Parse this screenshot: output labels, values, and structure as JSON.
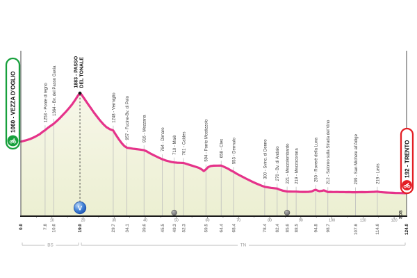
{
  "colors": {
    "pink": "#e5338a",
    "fill_top": "#f7f7e9",
    "fill_bottom": "#ecefd2",
    "axis": "#1a1a1a",
    "side_border": "#4a4a4a",
    "gridline": "#bdbdbd",
    "label_text": "#3c3c3c",
    "km_muted": "#868686",
    "km_strong": "#111111",
    "tick_text": "#777777",
    "region_text": "#9a9a9a",
    "region_line": "#bcbcbc",
    "start_green": "#17a03c",
    "finish_red": "#e31e24",
    "valico_blue_dark": "#1d4fa8",
    "valico_blue_light": "#bcd9f7",
    "feed_gray": "#5a5a5a"
  },
  "start_badge": {
    "label": "1060 - VEZZA D'OGLIO"
  },
  "finish_badge": {
    "label": "192 - TRENTO"
  },
  "credit": "SDS",
  "chart_data": {
    "type": "area",
    "title": "Stage altimetry profile Vezza d'Oglio - Trento",
    "x_unit": "km",
    "y_unit": "m",
    "xlim": [
      0,
      124
    ],
    "ylim": [
      -194,
      2590
    ],
    "grid": "vertical-waypoint-lines",
    "legend": "none",
    "summit_label_lines": [
      "1883 - PASSO",
      "DEL TONALE"
    ],
    "valico_marker": {
      "symbol": "V",
      "km": 19
    },
    "feed_zone_kms": [
      49.3,
      85.6
    ],
    "axis_ticks": [
      10,
      20,
      30,
      40,
      50,
      60,
      70,
      80,
      90,
      100,
      110,
      120
    ],
    "regions": [
      {
        "label": "BS",
        "from_km": 0,
        "to_km": 19
      },
      {
        "label": "TN",
        "from_km": 19,
        "to_km": 124
      }
    ],
    "waypoints": [
      {
        "km": 0.0,
        "km_label": "0.0",
        "elev": 1060,
        "name": "VEZZA D'OGLIO",
        "label": "1060 - VEZZA D'OGLIO",
        "style": "start"
      },
      {
        "km": 7.8,
        "km_label": "7.8",
        "elev": 1253,
        "name": "Ponte di legno",
        "label": "1253 - Ponte di legno",
        "style": "normal"
      },
      {
        "km": 10.6,
        "km_label": "10.6",
        "elev": 1364,
        "name": "Bv. del Passo Gavia",
        "label": "1364 - Bv. del Passo Gavia",
        "style": "normal"
      },
      {
        "km": 19.0,
        "km_label": "19.0",
        "elev": 1883,
        "name": "PASSO DEL TONALE",
        "label": "1883 - PASSO DEL TONALE",
        "style": "summit"
      },
      {
        "km": 29.7,
        "km_label": "29.7",
        "elev": 1248,
        "name": "Vermiglio",
        "label": "1248 - Vermiglio",
        "style": "normal"
      },
      {
        "km": 34.1,
        "km_label": "34.1",
        "elev": 957,
        "name": "Fucine-Bv. di Peio",
        "label": "957 - Fucine-Bv. di Peio",
        "style": "normal"
      },
      {
        "km": 39.6,
        "km_label": "39.6",
        "elev": 916,
        "name": "Mezzana",
        "label": "916 - Mezzana",
        "style": "normal"
      },
      {
        "km": 45.5,
        "km_label": "45.5",
        "elev": 764,
        "name": "Dimaro",
        "label": "764 - Dimaro",
        "style": "normal"
      },
      {
        "km": 49.3,
        "km_label": "49.3",
        "elev": 710,
        "name": "Malè",
        "label": "710 - Malè",
        "style": "normal",
        "feed": true
      },
      {
        "km": 52.3,
        "km_label": "52.3",
        "elev": 701,
        "name": "Caldes",
        "label": "701 - Caldes",
        "style": "normal"
      },
      {
        "km": 59.5,
        "km_label": "59.5",
        "elev": 594,
        "name": "Ponte Mostizzolo",
        "label": "594 - Ponte Mostizzolo",
        "style": "normal"
      },
      {
        "km": 64.4,
        "km_label": "64.4",
        "elev": 658,
        "name": "Cles",
        "label": "658 - Cles",
        "style": "normal"
      },
      {
        "km": 68.4,
        "km_label": "68.4",
        "elev": 553,
        "name": "Dermulo",
        "label": "553 - Dermulo",
        "style": "normal"
      },
      {
        "km": 78.4,
        "km_label": "78.4",
        "elev": 300,
        "name": "Svinc. di Denno",
        "label": "300 - Svinc. di Denno",
        "style": "normal"
      },
      {
        "km": 82.4,
        "km_label": "82.4",
        "elev": 270,
        "name": "Bv. di Andalo",
        "label": "270 - Bv. di Andalo",
        "style": "normal"
      },
      {
        "km": 85.6,
        "km_label": "85.6",
        "elev": 221,
        "name": "Mezzolombardo",
        "label": "221 - Mezzolombardo",
        "style": "normal",
        "feed": true
      },
      {
        "km": 88.5,
        "km_label": "88.5",
        "elev": 219,
        "name": "Mezzocorona",
        "label": "219 - Mezzocorona",
        "style": "normal"
      },
      {
        "km": 94.8,
        "km_label": "94.8",
        "elev": 250,
        "name": "Roverè della Luna",
        "label": "250 - Roverè della Luna",
        "style": "normal"
      },
      {
        "km": 98.7,
        "km_label": "98.7",
        "elev": 212,
        "name": "Salorno sulla Strada del Vino",
        "label": "212 - Salorno sulla Strada del Vino",
        "style": "normal"
      },
      {
        "km": 107.6,
        "km_label": "107.6",
        "elev": 209,
        "name": "San Michele all'Adige",
        "label": "209 - San Michele all'Adige",
        "style": "normal"
      },
      {
        "km": 114.6,
        "km_label": "114.6",
        "elev": 219,
        "name": "Lavis",
        "label": "219 - Lavis",
        "style": "normal"
      },
      {
        "km": 124.0,
        "km_label": "124.0",
        "elev": 192,
        "name": "TRENTO",
        "label": "192 - TRENTO",
        "style": "finish"
      }
    ],
    "profile": [
      [
        0,
        1060
      ],
      [
        1.5,
        1080
      ],
      [
        3,
        1105
      ],
      [
        4.5,
        1140
      ],
      [
        6,
        1185
      ],
      [
        7,
        1225
      ],
      [
        7.8,
        1253
      ],
      [
        9,
        1305
      ],
      [
        10.6,
        1364
      ],
      [
        11.5,
        1405
      ],
      [
        12.5,
        1455
      ],
      [
        13.5,
        1510
      ],
      [
        14.5,
        1565
      ],
      [
        15.5,
        1625
      ],
      [
        16.5,
        1690
      ],
      [
        17.5,
        1765
      ],
      [
        18.3,
        1830
      ],
      [
        19,
        1883
      ],
      [
        19.6,
        1845
      ],
      [
        20.5,
        1775
      ],
      [
        21.5,
        1700
      ],
      [
        22.5,
        1625
      ],
      [
        23.5,
        1550
      ],
      [
        24.5,
        1480
      ],
      [
        25.5,
        1415
      ],
      [
        26.5,
        1355
      ],
      [
        27.5,
        1305
      ],
      [
        28.6,
        1270
      ],
      [
        29.7,
        1248
      ],
      [
        30.5,
        1180
      ],
      [
        31.5,
        1100
      ],
      [
        32.5,
        1030
      ],
      [
        33.3,
        985
      ],
      [
        34.1,
        957
      ],
      [
        35,
        950
      ],
      [
        36,
        942
      ],
      [
        37,
        935
      ],
      [
        38,
        928
      ],
      [
        39.6,
        916
      ],
      [
        40.5,
        895
      ],
      [
        41.5,
        865
      ],
      [
        42.5,
        838
      ],
      [
        43.5,
        812
      ],
      [
        44.5,
        786
      ],
      [
        45.5,
        764
      ],
      [
        46.5,
        745
      ],
      [
        47.5,
        730
      ],
      [
        48.4,
        718
      ],
      [
        49.3,
        710
      ],
      [
        50.3,
        706
      ],
      [
        51.3,
        703
      ],
      [
        52.3,
        701
      ],
      [
        53.3,
        685
      ],
      [
        54.3,
        668
      ],
      [
        55.3,
        652
      ],
      [
        56.3,
        636
      ],
      [
        57.3,
        618
      ],
      [
        58.2,
        590
      ],
      [
        58.8,
        566
      ],
      [
        59.5,
        594
      ],
      [
        60.2,
        630
      ],
      [
        61,
        650
      ],
      [
        62,
        655
      ],
      [
        63.2,
        657
      ],
      [
        64.4,
        658
      ],
      [
        65.4,
        635
      ],
      [
        66.4,
        610
      ],
      [
        67.4,
        580
      ],
      [
        68.4,
        553
      ],
      [
        69.4,
        520
      ],
      [
        70.4,
        492
      ],
      [
        71.4,
        465
      ],
      [
        72.4,
        438
      ],
      [
        73.4,
        412
      ],
      [
        74.4,
        386
      ],
      [
        75.4,
        362
      ],
      [
        76.4,
        340
      ],
      [
        77.4,
        318
      ],
      [
        78.4,
        300
      ],
      [
        79.4,
        290
      ],
      [
        80.4,
        282
      ],
      [
        81.4,
        276
      ],
      [
        82.4,
        270
      ],
      [
        83.2,
        252
      ],
      [
        84.2,
        235
      ],
      [
        85.6,
        221
      ],
      [
        86.6,
        220
      ],
      [
        87.5,
        219
      ],
      [
        88.5,
        219
      ],
      [
        89.5,
        216
      ],
      [
        90.5,
        214
      ],
      [
        91.5,
        214
      ],
      [
        92.5,
        216
      ],
      [
        93.5,
        222
      ],
      [
        94.3,
        242
      ],
      [
        94.8,
        250
      ],
      [
        95.3,
        238
      ],
      [
        96,
        226
      ],
      [
        96.8,
        232
      ],
      [
        97.4,
        240
      ],
      [
        98,
        228
      ],
      [
        98.7,
        212
      ],
      [
        99.5,
        214
      ],
      [
        100.5,
        212
      ],
      [
        101.5,
        213
      ],
      [
        102.5,
        211
      ],
      [
        103.5,
        212
      ],
      [
        104.5,
        210
      ],
      [
        105.5,
        211
      ],
      [
        106.5,
        209
      ],
      [
        107.6,
        209
      ],
      [
        108.6,
        210
      ],
      [
        109.6,
        211
      ],
      [
        110.6,
        210
      ],
      [
        111.6,
        211
      ],
      [
        112.6,
        213
      ],
      [
        113.6,
        216
      ],
      [
        114.6,
        219
      ],
      [
        115.4,
        212
      ],
      [
        116.4,
        207
      ],
      [
        117.4,
        204
      ],
      [
        118.4,
        202
      ],
      [
        119.4,
        199
      ],
      [
        120.4,
        197
      ],
      [
        121.4,
        196
      ],
      [
        122.4,
        194
      ],
      [
        124,
        192
      ]
    ]
  }
}
